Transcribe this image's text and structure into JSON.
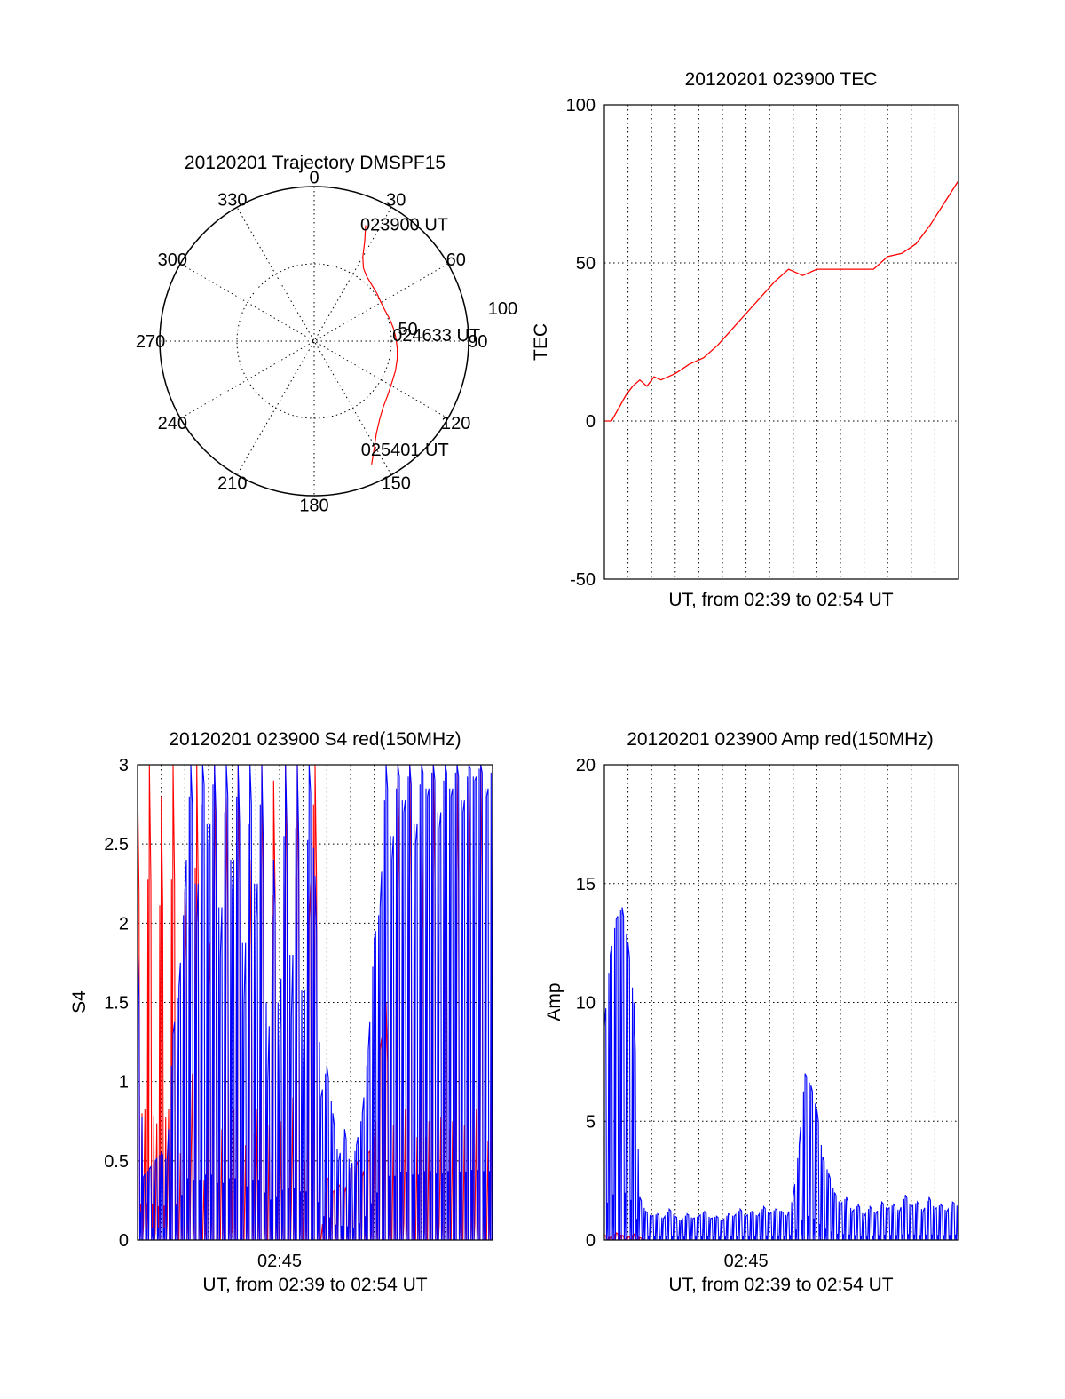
{
  "chart_data": [
    {
      "type": "polar",
      "title": "20120201 Trajectory DMSPF15",
      "angular_ticks": [
        "0",
        "30",
        "60",
        "90",
        "120",
        "150",
        "180",
        "210",
        "240",
        "270",
        "300",
        "330"
      ],
      "radial_ticks": [
        "50",
        "100"
      ],
      "rlim": [
        0,
        100
      ],
      "grid": true,
      "series": [
        {
          "color": "#ff0000",
          "points": [
            [
              24,
              82
            ],
            [
              27,
              72
            ],
            [
              30,
              63
            ],
            [
              34,
              57
            ],
            [
              39,
              54
            ],
            [
              46,
              52
            ],
            [
              53,
              51
            ],
            [
              60,
              50
            ],
            [
              67,
              50
            ],
            [
              74,
              51
            ],
            [
              81,
              52
            ],
            [
              88,
              53
            ],
            [
              95,
              54
            ],
            [
              102,
              55
            ],
            [
              110,
              56
            ],
            [
              118,
              57
            ],
            [
              126,
              59
            ],
            [
              134,
              62
            ],
            [
              140,
              66
            ],
            [
              146,
              72
            ],
            [
              151,
              80
            ],
            [
              155,
              88
            ]
          ]
        }
      ],
      "annotations": [
        {
          "text": "023900 UT",
          "at": [
            24,
            82
          ]
        },
        {
          "text": "024633 UT",
          "at": [
            88,
            53
          ]
        },
        {
          "text": "025401 UT",
          "at": [
            155,
            88
          ]
        }
      ]
    },
    {
      "type": "line",
      "title": "20120201 023900 TEC",
      "xlabel": "UT, from 02:39 to 02:54 UT",
      "ylabel": "TEC",
      "xlim": [
        0,
        15
      ],
      "ylim": [
        -50,
        100
      ],
      "yticks": [
        "100",
        "50",
        "0",
        "-50"
      ],
      "grid": true,
      "series": [
        {
          "color": "#ff0000",
          "x": [
            0,
            0.3,
            0.6,
            0.9,
            1.2,
            1.5,
            1.8,
            2.1,
            2.4,
            3.0,
            3.6,
            4.2,
            4.8,
            5.4,
            6.0,
            6.6,
            7.2,
            7.8,
            8.4,
            9.0,
            9.6,
            10.2,
            10.8,
            11.4,
            12.0,
            12.6,
            13.2,
            13.8,
            14.4,
            15.0
          ],
          "y": [
            0,
            0,
            4,
            8,
            11,
            13,
            11,
            14,
            13,
            15,
            18,
            20,
            24,
            29,
            34,
            39,
            44,
            48,
            46,
            48,
            48,
            48,
            48,
            48,
            52,
            53,
            56,
            62,
            69,
            76
          ]
        }
      ]
    },
    {
      "type": "line",
      "title": "20120201 023900 S4 red(150MHz)",
      "xlabel": "UT, from 02:39 to 02:54 UT",
      "ylabel": "S4",
      "xlim": [
        0,
        15
      ],
      "ylim": [
        0,
        3
      ],
      "xticks": [
        "02:45"
      ],
      "yticks": [
        "0",
        "0.5",
        "1",
        "1.5",
        "2",
        "2.5",
        "3"
      ],
      "grid": true,
      "series": [
        {
          "color": "#ff0000",
          "x": [
            0.0,
            0.25,
            0.5,
            0.75,
            1.0,
            1.25,
            1.5,
            1.75,
            2.0,
            2.25,
            2.5,
            2.75,
            3.0,
            3.25,
            3.5,
            3.75,
            4.0,
            4.25,
            4.5,
            4.75,
            5.0,
            5.25,
            5.5,
            5.75,
            6.0,
            6.25,
            6.5,
            6.75,
            7.0,
            7.25,
            7.5,
            7.75,
            8.0,
            8.25,
            8.5,
            8.75,
            9.0,
            9.25,
            9.5,
            9.75,
            10.0,
            10.25,
            10.5,
            10.75,
            11.0,
            11.25,
            11.5,
            11.75,
            12.0,
            12.25,
            12.5,
            12.75,
            13.0,
            13.25,
            13.5,
            13.75,
            14.0,
            14.25,
            14.5,
            14.75,
            15.0
          ],
          "y": [
            2.9,
            0.1,
            3.0,
            0.05,
            2.8,
            0.1,
            3.0,
            0.0,
            2.2,
            0.4,
            3.0,
            0.0,
            1.5,
            3.0,
            0.0,
            2.8,
            0.1,
            3.0,
            0.0,
            2.4,
            0.1,
            3.0,
            0.0,
            2.9,
            0.0,
            3.0,
            0.2,
            3.0,
            0.0,
            2.0,
            3.0,
            0.0,
            0.4,
            0.3,
            0.35,
            0.3,
            0.45,
            0.5,
            0.4,
            0.55,
            0.6,
            1.2,
            1.5,
            0.0,
            2.9,
            0.1,
            3.0,
            0.0,
            2.6,
            0.0,
            3.0,
            0.1,
            2.8,
            0.0,
            3.0,
            0.0,
            2.9,
            0.1,
            3.0,
            0.0,
            2.5
          ]
        },
        {
          "color": "#0000ff",
          "x": [
            0.0,
            0.25,
            0.5,
            0.75,
            1.0,
            1.25,
            1.5,
            1.75,
            2.0,
            2.25,
            2.5,
            2.75,
            3.0,
            3.25,
            3.5,
            3.75,
            4.0,
            4.25,
            4.5,
            4.75,
            5.0,
            5.25,
            5.5,
            5.75,
            6.0,
            6.25,
            6.5,
            6.75,
            7.0,
            7.25,
            7.5,
            7.75,
            8.0,
            8.25,
            8.5,
            8.75,
            9.0,
            9.25,
            9.5,
            9.75,
            10.0,
            10.25,
            10.5,
            10.75,
            11.0,
            11.25,
            11.5,
            11.75,
            12.0,
            12.25,
            12.5,
            12.75,
            13.0,
            13.25,
            13.5,
            13.75,
            14.0,
            14.25,
            14.5,
            14.75,
            15.0
          ],
          "y": [
            1.9,
            0.4,
            0.45,
            0.5,
            0.55,
            0.5,
            1.3,
            1.6,
            2.2,
            3.0,
            2.0,
            3.0,
            2.5,
            3.0,
            1.8,
            3.0,
            2.2,
            3.0,
            1.5,
            3.0,
            2.0,
            3.0,
            1.0,
            2.4,
            1.2,
            3.0,
            1.4,
            3.0,
            1.1,
            3.0,
            2.3,
            0.9,
            1.1,
            0.8,
            0.5,
            0.7,
            0.45,
            0.6,
            0.8,
            1.2,
            1.9,
            2.1,
            3.0,
            2.4,
            3.0,
            2.7,
            3.0,
            2.5,
            3.0,
            2.8,
            3.0,
            2.6,
            3.0,
            2.8,
            3.0,
            2.7,
            3.0,
            2.9,
            3.0,
            2.8,
            3.0
          ]
        }
      ]
    },
    {
      "type": "line",
      "title": "20120201 023900 Amp red(150MHz)",
      "xlabel": "UT, from 02:39 to 02:54 UT",
      "ylabel": "Amp",
      "xlim": [
        0,
        15
      ],
      "ylim": [
        0,
        20
      ],
      "xticks": [
        "02:45"
      ],
      "yticks": [
        "0",
        "5",
        "10",
        "15",
        "20"
      ],
      "grid": true,
      "series": [
        {
          "color": "#ff0000",
          "x": [
            0.0,
            0.25,
            0.5,
            0.75,
            1.0,
            1.25,
            1.5,
            1.75,
            2.0,
            2.25,
            2.5,
            2.75,
            3.0,
            3.25,
            3.5,
            3.75,
            4.0,
            4.25,
            4.5,
            4.75,
            5.0,
            5.25,
            5.5,
            5.75,
            6.0,
            6.25,
            6.5,
            6.75,
            7.0,
            7.25,
            7.5,
            7.75,
            8.0,
            8.25,
            8.5,
            8.75,
            9.0,
            9.25,
            9.5,
            9.75,
            10.0,
            10.25,
            10.5,
            10.75,
            11.0,
            11.25,
            11.5,
            11.75,
            12.0,
            12.25,
            12.5,
            12.75,
            13.0,
            13.25,
            13.5,
            13.75,
            14.0,
            14.25,
            14.5,
            14.75,
            15.0
          ],
          "y": [
            0.2,
            0.1,
            0.3,
            0.2,
            0.1,
            0.25,
            0.1,
            0.0,
            0.0,
            0.0,
            0.0,
            0.0,
            0.0,
            0.0,
            0.0,
            0.0,
            0.0,
            0.0,
            0.0,
            0.0,
            0.0,
            0.0,
            0.0,
            0.0,
            0.0,
            0.0,
            0.0,
            0.0,
            0.0,
            0.0,
            0.0,
            0.0,
            0.0,
            0.0,
            0.0,
            0.0,
            0.0,
            0.0,
            0.0,
            0.0,
            0.0,
            0.0,
            0.0,
            0.0,
            0.0,
            0.0,
            0.0,
            0.0,
            0.0,
            0.0,
            0.0,
            0.0,
            0.0,
            0.0,
            0.0,
            0.0,
            0.0,
            0.0,
            0.0,
            0.0,
            0.0
          ]
        },
        {
          "color": "#0000ff",
          "x": [
            0.0,
            0.25,
            0.5,
            0.75,
            1.0,
            1.25,
            1.5,
            1.75,
            2.0,
            2.25,
            2.5,
            2.75,
            3.0,
            3.25,
            3.5,
            3.75,
            4.0,
            4.25,
            4.5,
            4.75,
            5.0,
            5.25,
            5.5,
            5.75,
            6.0,
            6.25,
            6.5,
            6.75,
            7.0,
            7.25,
            7.5,
            7.75,
            8.0,
            8.25,
            8.5,
            8.75,
            9.0,
            9.25,
            9.5,
            9.75,
            10.0,
            10.25,
            10.5,
            10.75,
            11.0,
            11.25,
            11.5,
            11.75,
            12.0,
            12.25,
            12.5,
            12.75,
            13.0,
            13.25,
            13.5,
            13.75,
            14.0,
            14.25,
            14.5,
            14.75,
            15.0
          ],
          "y": [
            9.0,
            12.0,
            13.5,
            14.0,
            12.5,
            10.0,
            1.8,
            1.2,
            1.0,
            1.1,
            0.9,
            1.3,
            1.0,
            0.8,
            1.1,
            0.9,
            1.0,
            1.2,
            0.9,
            1.0,
            0.8,
            1.1,
            1.0,
            1.3,
            1.0,
            1.2,
            1.0,
            1.4,
            1.1,
            1.3,
            1.2,
            1.0,
            1.8,
            4.0,
            7.0,
            6.5,
            5.5,
            3.5,
            2.8,
            2.0,
            1.5,
            1.8,
            1.2,
            1.5,
            1.0,
            1.4,
            1.1,
            1.6,
            1.3,
            1.5,
            1.2,
            1.9,
            1.4,
            1.6,
            1.2,
            1.8,
            1.3,
            1.5,
            1.2,
            1.6,
            1.4
          ]
        }
      ]
    }
  ]
}
